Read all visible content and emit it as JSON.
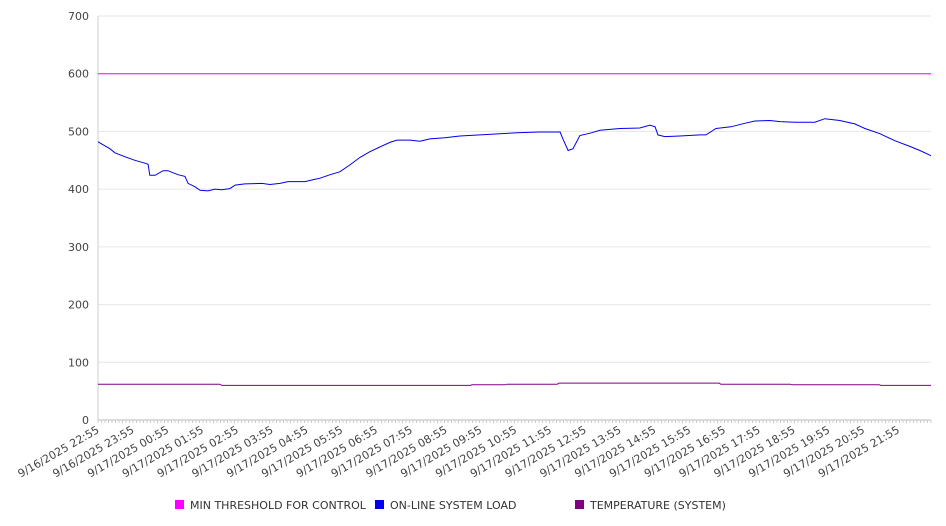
{
  "chart_data": {
    "type": "line",
    "title": "",
    "xlabel": "",
    "ylabel": "",
    "ylim": [
      0,
      700
    ],
    "yticks": [
      0,
      100,
      200,
      300,
      400,
      500,
      600,
      700
    ],
    "x_unit": "hours since 9/16/2025 22:55",
    "xlim": [
      0,
      23.94
    ],
    "xtick_labels": [
      "9/16/2025 22:55",
      "9/16/2025 23:55",
      "9/17/2025 00:55",
      "9/17/2025 01:55",
      "9/17/2025 02:55",
      "9/17/2025 03:55",
      "9/17/2025 04:55",
      "9/17/2025 05:55",
      "9/17/2025 06:55",
      "9/17/2025 07:55",
      "9/17/2025 08:55",
      "9/17/2025 09:55",
      "9/17/2025 10:55",
      "9/17/2025 11:55",
      "9/17/2025 12:55",
      "9/17/2025 13:55",
      "9/17/2025 14:55",
      "9/17/2025 15:55",
      "9/17/2025 16:55",
      "9/17/2025 17:55",
      "9/17/2025 18:55",
      "9/17/2025 19:55",
      "9/17/2025 20:55",
      "9/17/2025 21:55"
    ],
    "grid": true,
    "legend_position": "bottom",
    "series": [
      {
        "name": "MIN THRESHOLD FOR CONTROL",
        "color": "#ff00ff",
        "x": [
          0,
          23.94
        ],
        "y": [
          600,
          600
        ]
      },
      {
        "name": "ON-LINE SYSTEM LOAD",
        "color": "#0000ee",
        "x": [
          0,
          0.34,
          0.49,
          0.78,
          1.06,
          1.35,
          1.44,
          1.49,
          1.64,
          1.87,
          2.01,
          2.3,
          2.5,
          2.59,
          2.79,
          2.93,
          3.16,
          3.36,
          3.56,
          3.79,
          3.94,
          4.22,
          4.71,
          4.94,
          5.23,
          5.46,
          5.95,
          6.24,
          6.38,
          6.67,
          6.95,
          7.24,
          7.53,
          7.82,
          8.1,
          8.39,
          8.59,
          8.97,
          9.25,
          9.54,
          9.97,
          10.4,
          10.98,
          11.55,
          12.13,
          12.7,
          13.28,
          13.36,
          13.51,
          13.65,
          13.85,
          14.14,
          14.43,
          15.0,
          15.57,
          15.86,
          16.01,
          16.09,
          16.29,
          16.72,
          17.3,
          17.47,
          17.76,
          18.19,
          18.59,
          18.88,
          19.31,
          19.6,
          20.03,
          20.6,
          20.89,
          21.32,
          21.75,
          22.04,
          22.47,
          22.9,
          23.33,
          23.62,
          23.94
        ],
        "y": [
          482,
          470,
          463,
          456,
          450,
          445,
          443,
          424,
          424,
          432,
          432,
          425,
          422,
          410,
          404,
          398,
          397,
          400,
          399,
          401,
          407,
          409,
          410,
          408,
          410,
          413,
          413,
          417,
          419,
          425,
          430,
          442,
          455,
          465,
          473,
          481,
          485,
          485,
          483,
          487,
          489,
          492,
          494,
          496,
          498,
          499,
          499,
          487,
          467,
          470,
          493,
          497,
          502,
          505,
          506,
          511,
          508,
          494,
          491,
          492,
          494,
          494,
          505,
          508,
          514,
          518,
          519,
          517,
          516,
          516,
          522,
          519,
          513,
          505,
          496,
          484,
          474,
          467,
          458
        ]
      },
      {
        "name": "TEMPERATURE (SYSTEM)",
        "color": "#800080",
        "x": [
          0,
          3.5,
          3.56,
          10.7,
          10.75,
          11.7,
          11.75,
          13.2,
          13.25,
          17.85,
          17.9,
          19.9,
          19.95,
          22.45,
          22.5,
          23.94
        ],
        "y": [
          62,
          62,
          60,
          60,
          61,
          61,
          62,
          62,
          64,
          64,
          62,
          62,
          61,
          61,
          60,
          60
        ]
      }
    ]
  }
}
